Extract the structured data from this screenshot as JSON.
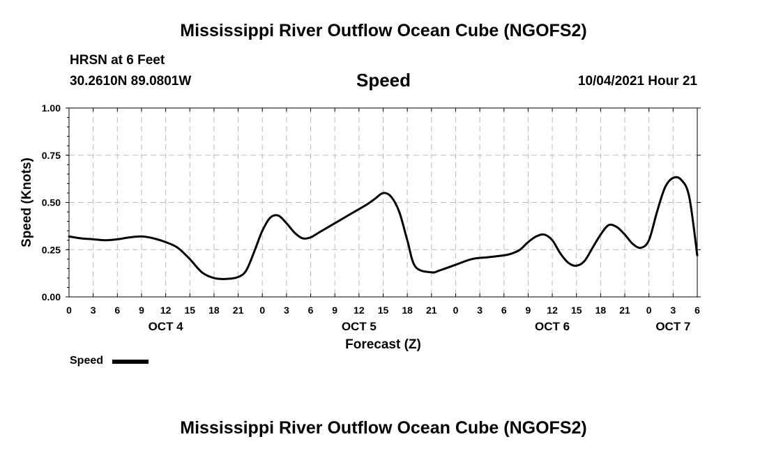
{
  "header": {
    "title": "Mississippi River Outflow Ocean Cube (NGOFS2)",
    "station": "HRSN at 6 Feet",
    "coords": "30.2610N  89.0801W",
    "variable": "Speed",
    "datetime": "10/04/2021 Hour 21"
  },
  "footer": {
    "title": "Mississippi River Outflow Ocean Cube (NGOFS2)"
  },
  "legend": {
    "label": "Speed"
  },
  "chart_data": {
    "type": "line",
    "title": "Speed",
    "xlabel": "Forecast (Z)",
    "ylabel": "Speed (Knots)",
    "ylim": [
      0,
      1
    ],
    "xlim": [
      0,
      78
    ],
    "grid": true,
    "yticks": [
      "0.00",
      "0.25",
      "0.50",
      "0.75",
      "1.00"
    ],
    "yticks_values": [
      0,
      0.25,
      0.5,
      0.75,
      1.0
    ],
    "xticks": [
      {
        "x": 0,
        "label": "0"
      },
      {
        "x": 3,
        "label": "3"
      },
      {
        "x": 6,
        "label": "6"
      },
      {
        "x": 9,
        "label": "9"
      },
      {
        "x": 12,
        "label": "12"
      },
      {
        "x": 15,
        "label": "15"
      },
      {
        "x": 18,
        "label": "18"
      },
      {
        "x": 21,
        "label": "21"
      },
      {
        "x": 24,
        "label": "0"
      },
      {
        "x": 27,
        "label": "3"
      },
      {
        "x": 30,
        "label": "6"
      },
      {
        "x": 33,
        "label": "9"
      },
      {
        "x": 36,
        "label": "12"
      },
      {
        "x": 39,
        "label": "15"
      },
      {
        "x": 42,
        "label": "18"
      },
      {
        "x": 45,
        "label": "21"
      },
      {
        "x": 48,
        "label": "0"
      },
      {
        "x": 51,
        "label": "3"
      },
      {
        "x": 54,
        "label": "6"
      },
      {
        "x": 57,
        "label": "9"
      },
      {
        "x": 60,
        "label": "12"
      },
      {
        "x": 63,
        "label": "15"
      },
      {
        "x": 66,
        "label": "18"
      },
      {
        "x": 69,
        "label": "21"
      },
      {
        "x": 72,
        "label": "0"
      },
      {
        "x": 75,
        "label": "3"
      },
      {
        "x": 78,
        "label": "6"
      }
    ],
    "day_labels": [
      {
        "x": 12,
        "label": "OCT 4"
      },
      {
        "x": 36,
        "label": "OCT 5"
      },
      {
        "x": 60,
        "label": "OCT 6"
      },
      {
        "x": 75,
        "label": "OCT 7"
      }
    ],
    "series": [
      {
        "name": "Speed",
        "x": [
          0,
          1.5,
          3,
          4.5,
          6,
          7.5,
          9,
          10.5,
          12,
          13.5,
          15,
          16.5,
          18,
          19.5,
          21,
          22,
          23,
          24,
          25,
          26,
          27,
          28,
          29,
          30,
          31,
          33,
          35,
          37,
          38,
          39,
          40,
          41,
          42,
          43,
          45,
          46,
          48,
          50,
          52,
          54,
          55,
          56,
          57,
          58,
          59,
          60,
          61,
          62,
          63,
          64,
          65,
          66,
          67,
          68,
          69,
          70,
          71,
          72,
          73,
          74,
          75,
          76,
          77,
          78
        ],
        "y": [
          0.32,
          0.31,
          0.305,
          0.3,
          0.305,
          0.315,
          0.32,
          0.31,
          0.29,
          0.26,
          0.2,
          0.13,
          0.1,
          0.095,
          0.105,
          0.14,
          0.24,
          0.35,
          0.42,
          0.43,
          0.39,
          0.34,
          0.31,
          0.315,
          0.34,
          0.39,
          0.44,
          0.49,
          0.52,
          0.55,
          0.53,
          0.45,
          0.3,
          0.16,
          0.13,
          0.14,
          0.17,
          0.2,
          0.21,
          0.22,
          0.23,
          0.25,
          0.29,
          0.32,
          0.33,
          0.3,
          0.23,
          0.18,
          0.165,
          0.19,
          0.26,
          0.33,
          0.38,
          0.37,
          0.33,
          0.28,
          0.26,
          0.3,
          0.45,
          0.58,
          0.63,
          0.62,
          0.53,
          0.22
        ]
      }
    ]
  }
}
